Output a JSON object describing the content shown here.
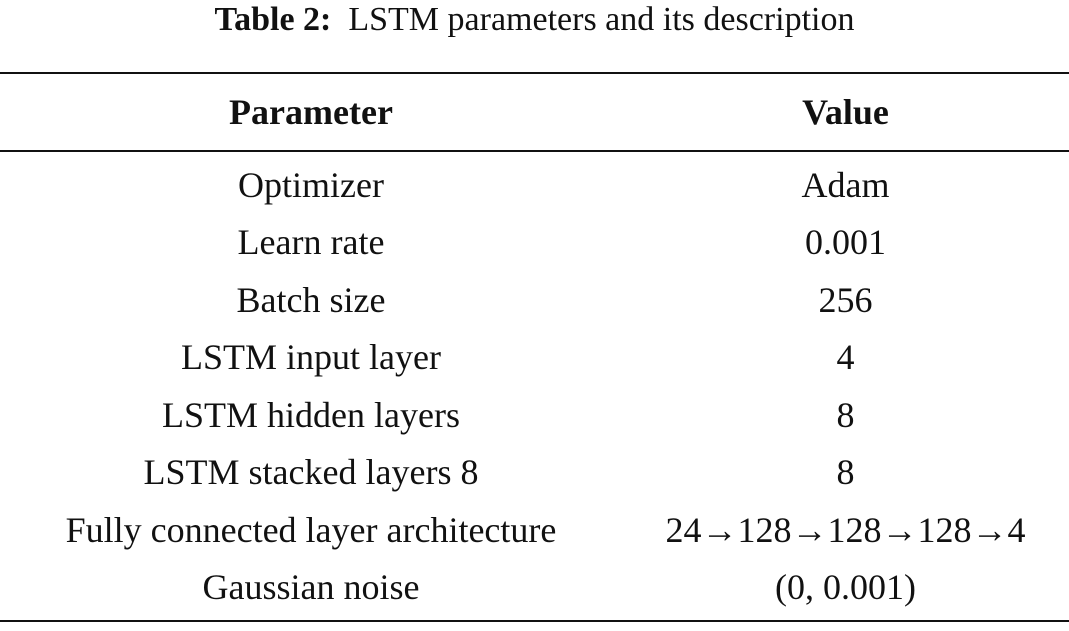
{
  "caption": {
    "label": "Table 2:",
    "text": "LSTM parameters and its description"
  },
  "table": {
    "headers": [
      "Parameter",
      "Value"
    ],
    "rows": [
      [
        "Optimizer",
        "Adam"
      ],
      [
        "Learn rate",
        "0.001"
      ],
      [
        "Batch size",
        "256"
      ],
      [
        "LSTM input layer",
        "4"
      ],
      [
        "LSTM hidden layers",
        "8"
      ],
      [
        "LSTM stacked layers 8",
        "8"
      ],
      [
        "Fully connected layer architecture",
        "24→128→128→128→4"
      ],
      [
        "Gaussian noise",
        "(0, 0.001)"
      ]
    ]
  }
}
